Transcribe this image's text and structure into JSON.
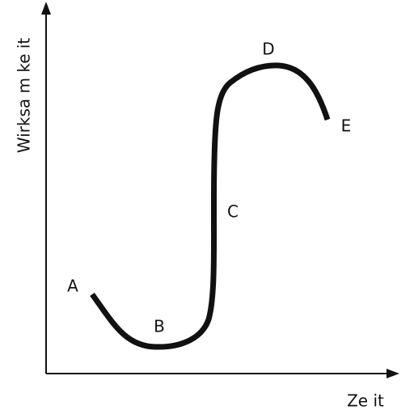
{
  "axes": {
    "y_label": "Wirksa m ke it",
    "x_label": "Ze it"
  },
  "points": [
    {
      "label": "A"
    },
    {
      "label": "B"
    },
    {
      "label": "C"
    },
    {
      "label": "D"
    },
    {
      "label": "E"
    }
  ]
}
